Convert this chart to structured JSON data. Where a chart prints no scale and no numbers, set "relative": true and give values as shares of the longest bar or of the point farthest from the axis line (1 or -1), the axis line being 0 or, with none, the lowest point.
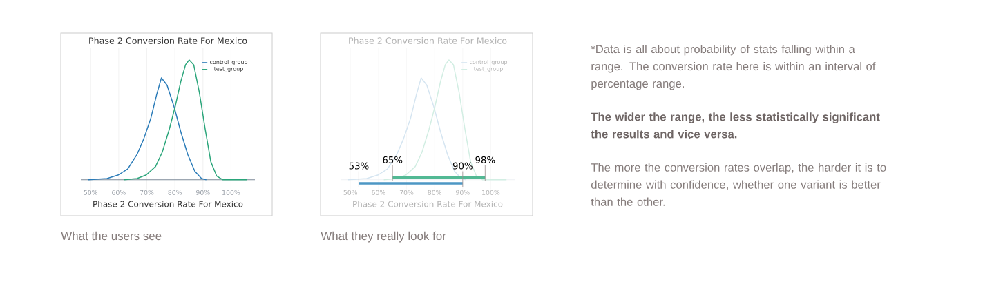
{
  "chart_data": [
    {
      "type": "line",
      "title": "Phase 2 Conversion Rate For Mexico",
      "xlabel": "Phase 2 Conversion Rate For Mexico",
      "relative": true,
      "grid": "x",
      "legend": "top right",
      "marker": "none",
      "xlim": [
        46.5,
        108.5
      ],
      "xticks": [
        {
          "value": 50,
          "label": "50%"
        },
        {
          "value": 60,
          "label": "60%"
        },
        {
          "value": 70,
          "label": "70%"
        },
        {
          "value": 80,
          "label": "80%"
        },
        {
          "value": 90,
          "label": "90%"
        },
        {
          "value": 100,
          "label": "100%"
        }
      ],
      "series": [
        {
          "name": "control_group",
          "color": "#2a7bb8",
          "x": [
            49.2,
            55.8,
            59.9,
            63.2,
            66.5,
            68.9,
            71.4,
            73.5,
            75.2,
            77.2,
            79.7,
            82.1,
            84.6,
            87.1,
            89.5,
            91.2
          ],
          "values": [
            0,
            0.01,
            0.04,
            0.09,
            0.21,
            0.34,
            0.51,
            0.71,
            0.85,
            0.79,
            0.61,
            0.4,
            0.21,
            0.07,
            0.01,
            0
          ]
        },
        {
          "name": "test_group",
          "color": "#2aa57a",
          "x": [
            61.9,
            66.5,
            69.8,
            73.1,
            75.5,
            78.0,
            80.1,
            82.1,
            83.8,
            85.1,
            86.7,
            88.7,
            90.8,
            92.8,
            94.9,
            97.0,
            105.6
          ],
          "values": [
            0,
            0.01,
            0.04,
            0.11,
            0.23,
            0.42,
            0.61,
            0.82,
            0.96,
            1,
            0.96,
            0.73,
            0.42,
            0.15,
            0.03,
            0,
            0
          ]
        }
      ],
      "annotations": [
        "What the users see"
      ]
    },
    {
      "type": "line",
      "title": "Phase 2 Conversion Rate For Mexico",
      "xlabel": "Phase 2 Conversion Rate For Mexico",
      "relative": true,
      "grid": "x",
      "legend": "top right",
      "marker": "none",
      "xlim": [
        46.5,
        108.5
      ],
      "xticks": [
        {
          "value": 50,
          "label": "50%"
        },
        {
          "value": 60,
          "label": "60%"
        },
        {
          "value": 70,
          "label": "70%"
        },
        {
          "value": 80,
          "label": "80%"
        },
        {
          "value": 90,
          "label": "90%"
        },
        {
          "value": 100,
          "label": "100%"
        }
      ],
      "series": [
        {
          "name": "control_group",
          "color": "#d5e5f1",
          "x": [
            49.2,
            55.8,
            59.9,
            63.2,
            66.5,
            68.9,
            71.4,
            73.5,
            75.2,
            77.2,
            79.7,
            82.1,
            84.6,
            87.1,
            89.5,
            91.2
          ],
          "values": [
            0,
            0.01,
            0.04,
            0.09,
            0.21,
            0.34,
            0.51,
            0.71,
            0.85,
            0.79,
            0.61,
            0.4,
            0.21,
            0.07,
            0.01,
            0
          ]
        },
        {
          "name": "test_group",
          "color": "#d2eee3",
          "x": [
            61.9,
            66.5,
            69.8,
            73.1,
            75.5,
            78.0,
            80.1,
            82.1,
            83.8,
            85.1,
            86.7,
            88.7,
            90.8,
            92.8,
            94.9,
            97.0,
            105.6
          ],
          "values": [
            0,
            0.01,
            0.04,
            0.11,
            0.23,
            0.42,
            0.61,
            0.82,
            0.96,
            1,
            0.96,
            0.73,
            0.42,
            0.15,
            0.03,
            0,
            0
          ]
        },
        {
          "color": "#52b994",
          "x": [
            65,
            98
          ],
          "values": [
            0.02,
            0.02
          ]
        },
        {
          "color": "#4d97c4",
          "x": [
            53,
            90
          ],
          "values": [
            -0.03,
            -0.03
          ]
        }
      ],
      "annotations": [
        {
          "text": "53%",
          "x": 53,
          "y": -0.03
        },
        {
          "text": "65%",
          "x": 65,
          "y": 0.02
        },
        {
          "text": "90%",
          "x": 90,
          "y": -0.03
        },
        {
          "text": "98%",
          "x": 98,
          "y": 0.02
        },
        "What they really look for"
      ]
    },
    {
      "type": "other",
      "annotations": [
        "*Data is all about probability of stats falling within a range. The conversion rate here is within an interval of percentage range.",
        "The wider the range, the less statistically significant the results and vice versa.",
        "The more the conversion rates overlap, the harder it is to determine with confidence, whether one variant is better than the other."
      ]
    }
  ]
}
